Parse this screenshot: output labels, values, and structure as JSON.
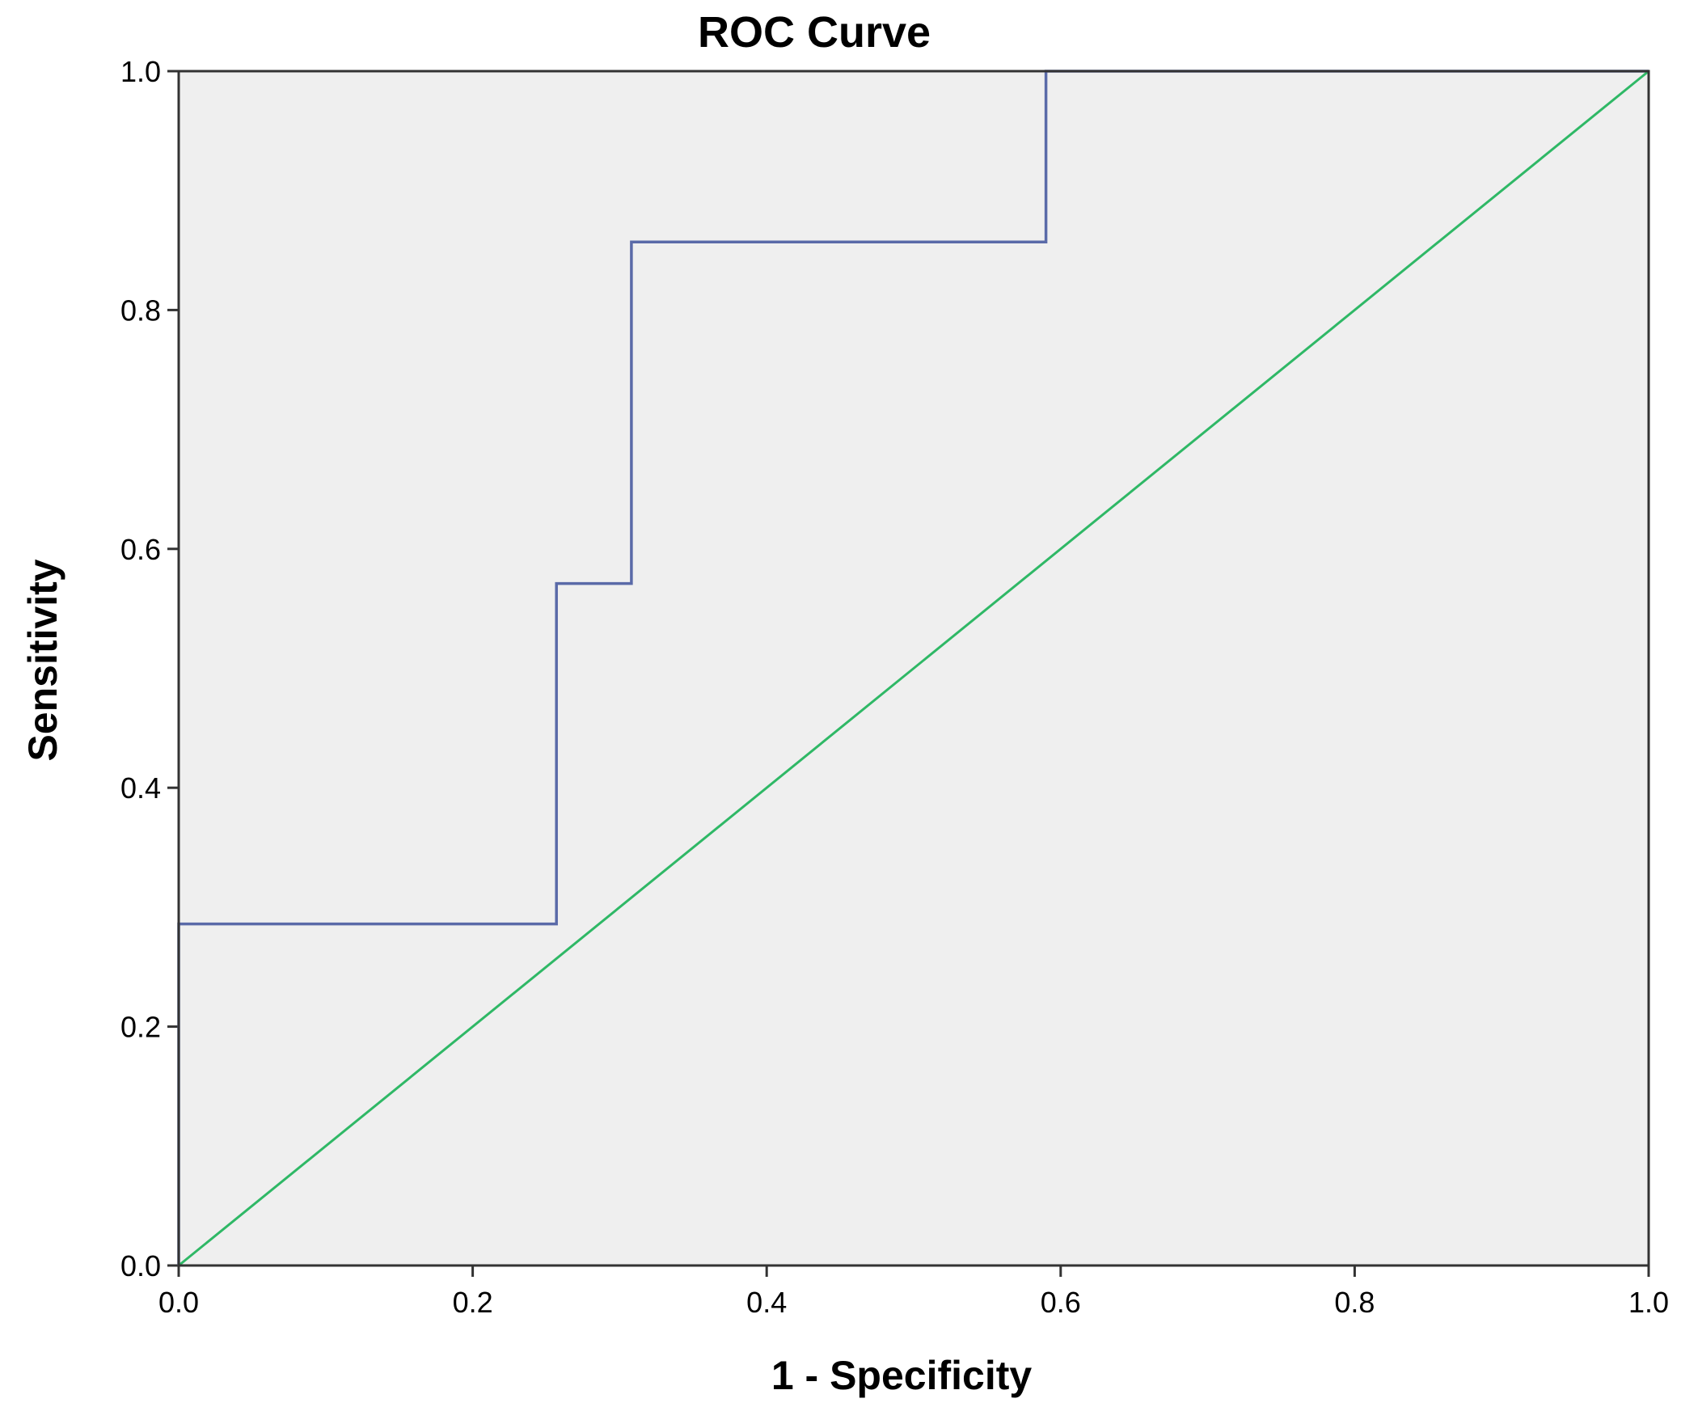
{
  "chart_data": {
    "type": "line",
    "title": "ROC Curve",
    "xlabel": "1 - Specificity",
    "ylabel": "Sensitivity",
    "xlim": [
      0.0,
      1.0
    ],
    "ylim": [
      0.0,
      1.0
    ],
    "x_ticks": [
      "0.0",
      "0.2",
      "0.4",
      "0.6",
      "0.8",
      "1.0"
    ],
    "y_ticks": [
      "0.0",
      "0.2",
      "0.4",
      "0.6",
      "0.8",
      "1.0"
    ],
    "grid": false,
    "plot_background": "#efefef",
    "series": [
      {
        "color": "#5a6aa8",
        "step": true,
        "x": [
          0.0,
          0.0,
          0.257,
          0.257,
          0.308,
          0.308,
          0.59,
          0.59,
          1.0
        ],
        "y": [
          0.0,
          0.286,
          0.286,
          0.571,
          0.571,
          0.857,
          0.857,
          1.0,
          1.0
        ]
      },
      {
        "color": "#2fb866",
        "x": [
          0.0,
          1.0
        ],
        "y": [
          0.0,
          1.0
        ]
      }
    ]
  }
}
